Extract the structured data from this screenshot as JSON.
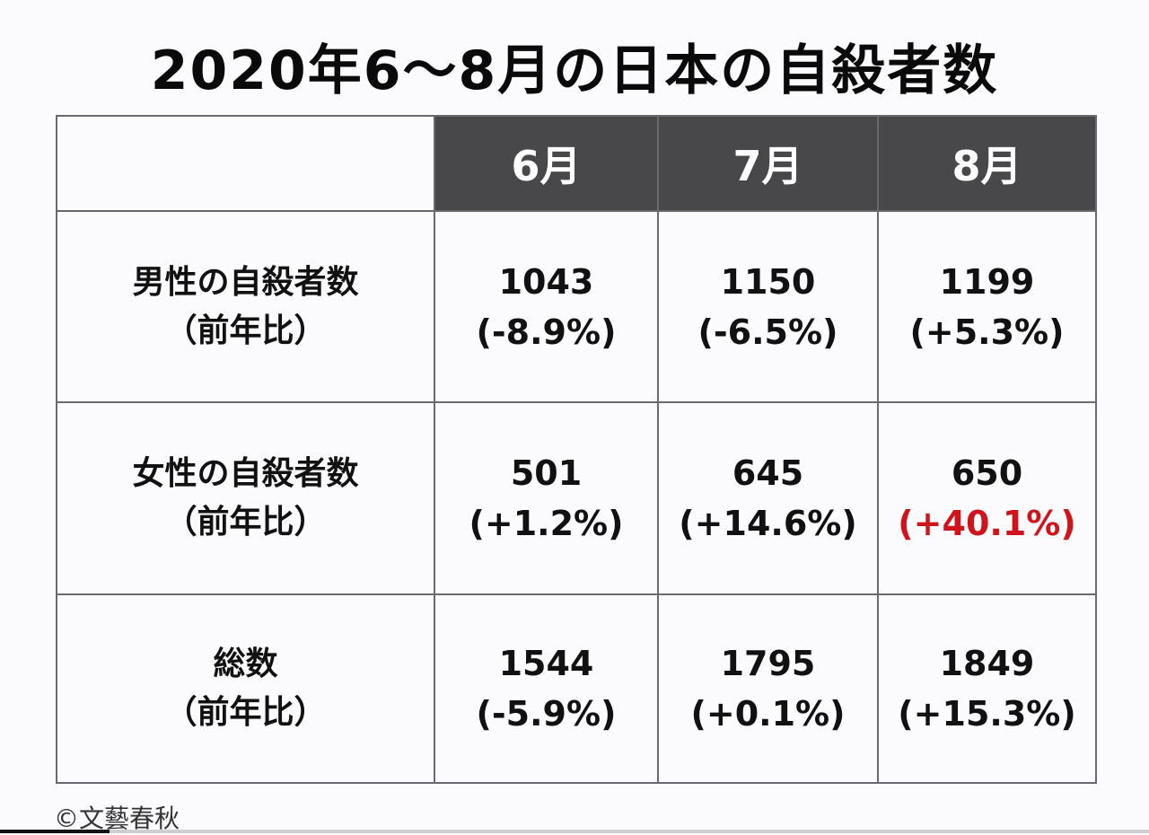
{
  "title": "2020年6～8月の日本の自殺者数",
  "table": {
    "columns": [
      "6月",
      "7月",
      "8月"
    ],
    "rows": [
      {
        "label": "男性の自殺者数",
        "sublabel": "（前年比）",
        "cells": [
          {
            "count": "1043",
            "change": "(-8.9%)"
          },
          {
            "count": "1150",
            "change": "(-6.5%)"
          },
          {
            "count": "1199",
            "change": "(+5.3%)"
          }
        ]
      },
      {
        "label": "女性の自殺者数",
        "sublabel": "（前年比）",
        "cells": [
          {
            "count": "501",
            "change": "(+1.2%)"
          },
          {
            "count": "645",
            "change": "(+14.6%)"
          },
          {
            "count": "650",
            "change": "(+40.1%)",
            "highlight": true
          }
        ]
      },
      {
        "label": "総数",
        "sublabel": "（前年比）",
        "cells": [
          {
            "count": "1544",
            "change": "(-5.9%)"
          },
          {
            "count": "1795",
            "change": "(+0.1%)"
          },
          {
            "count": "1849",
            "change": "(+15.3%)"
          }
        ]
      }
    ]
  },
  "colors": {
    "header_bg": "#48474a",
    "highlight": "#d0141c",
    "border": "#6a6870"
  },
  "credit": "©文藝春秋"
}
